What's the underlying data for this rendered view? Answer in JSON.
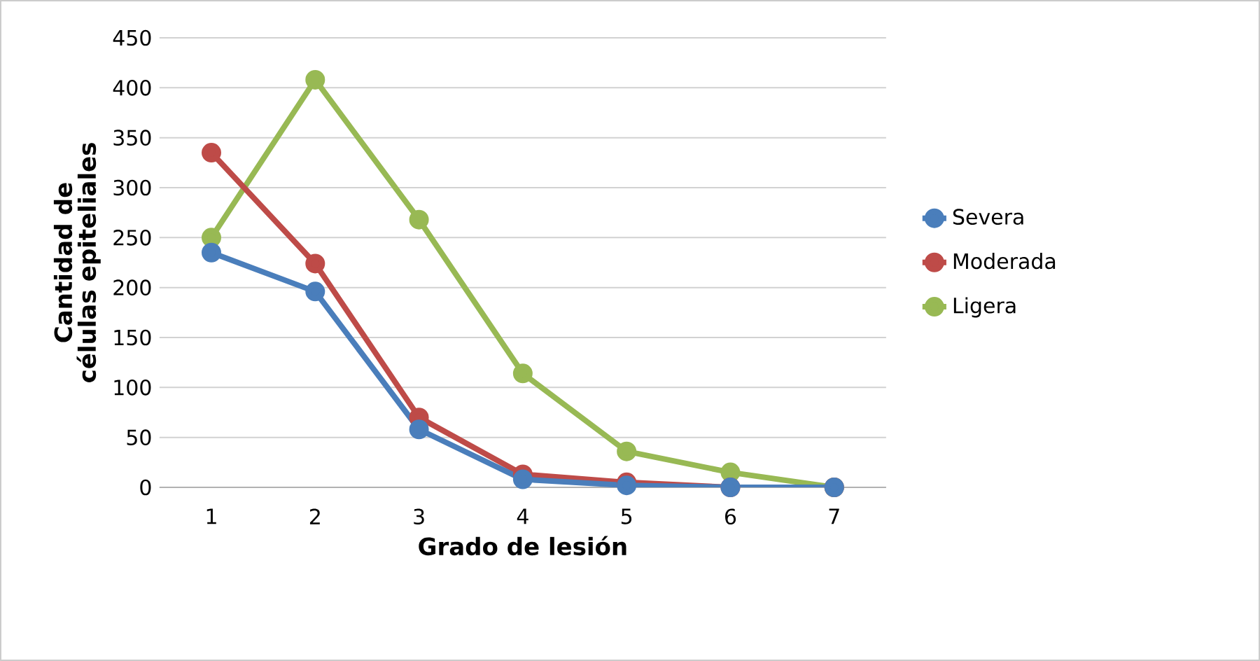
{
  "chart_data": {
    "type": "line",
    "xlabel": "Grado de lesión",
    "ylabel": "Cantidad de células epiteliales",
    "categories": [
      "1",
      "2",
      "3",
      "4",
      "5",
      "6",
      "7"
    ],
    "series": [
      {
        "name": "Severa",
        "color": "#4a7ebb",
        "values": [
          235,
          196,
          58,
          8,
          2,
          0,
          0
        ]
      },
      {
        "name": "Moderada",
        "color": "#be4b48",
        "values": [
          335,
          224,
          70,
          13,
          5,
          0,
          0
        ]
      },
      {
        "name": "Ligera",
        "color": "#98b954",
        "values": [
          250,
          408,
          268,
          114,
          36,
          15,
          0
        ]
      }
    ],
    "ylim": [
      0,
      450
    ],
    "yticks": [
      0,
      50,
      100,
      150,
      200,
      250,
      300,
      350,
      400,
      450
    ],
    "grid": "y",
    "legend": "right",
    "marker": "circle",
    "line_style": "solid"
  }
}
